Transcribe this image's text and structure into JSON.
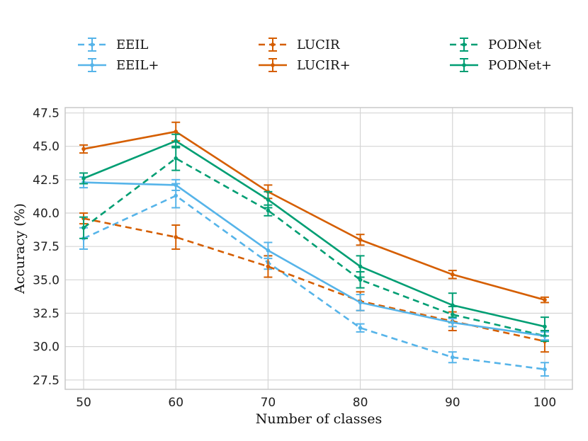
{
  "colors": {
    "EEIL": "#56b4e9",
    "LUCIR": "#d55e00",
    "PODNet": "#009e73",
    "grid": "#d5d5d5",
    "frame": "#c8c8c8"
  },
  "chart_data": {
    "type": "line",
    "title": "",
    "xlabel": "Number of classes",
    "ylabel": "Accuracy (%)",
    "x": [
      50,
      60,
      70,
      80,
      90,
      100
    ],
    "xticks": [
      "50",
      "60",
      "70",
      "80",
      "90",
      "100"
    ],
    "yticks": [
      "27.5",
      "30.0",
      "32.5",
      "35.0",
      "37.5",
      "40.0",
      "42.5",
      "45.0",
      "47.5"
    ],
    "ytick_values": [
      27.5,
      30.0,
      32.5,
      35.0,
      37.5,
      40.0,
      42.5,
      45.0,
      47.5
    ],
    "xlim": [
      48,
      103
    ],
    "ylim": [
      26.8,
      47.9
    ],
    "grid": true,
    "legend_position": "top",
    "series": [
      {
        "name": "EEIL",
        "family": "EEIL",
        "style": "dashed",
        "values": [
          38.1,
          41.3,
          36.3,
          31.4,
          29.2,
          28.3
        ],
        "errors": [
          0.8,
          0.9,
          0.5,
          0.3,
          0.4,
          0.5
        ]
      },
      {
        "name": "EEIL+",
        "family": "EEIL",
        "style": "solid",
        "values": [
          42.3,
          42.1,
          37.2,
          33.3,
          31.8,
          30.8
        ],
        "errors": [
          0.4,
          0.4,
          0.6,
          0.6,
          0.3,
          0.3
        ]
      },
      {
        "name": "LUCIR",
        "family": "LUCIR",
        "style": "dashed",
        "values": [
          39.6,
          38.2,
          36.0,
          33.4,
          31.9,
          30.4
        ],
        "errors": [
          0.4,
          0.9,
          0.8,
          0.7,
          0.7,
          0.8
        ]
      },
      {
        "name": "LUCIR+",
        "family": "LUCIR",
        "style": "solid",
        "values": [
          44.8,
          46.1,
          41.6,
          38.0,
          35.4,
          33.5
        ],
        "errors": [
          0.3,
          0.7,
          0.5,
          0.4,
          0.3,
          0.2
        ]
      },
      {
        "name": "PODNet",
        "family": "PODNet",
        "style": "dashed",
        "values": [
          38.9,
          44.1,
          40.2,
          35.0,
          32.4,
          30.8
        ],
        "errors": [
          0.8,
          0.9,
          0.4,
          0.6,
          0.6,
          0.4
        ]
      },
      {
        "name": "PODNet+",
        "family": "PODNet",
        "style": "solid",
        "values": [
          42.6,
          45.4,
          41.0,
          36.0,
          33.1,
          31.5
        ],
        "errors": [
          0.4,
          0.5,
          0.6,
          0.8,
          0.9,
          0.7
        ]
      }
    ]
  }
}
